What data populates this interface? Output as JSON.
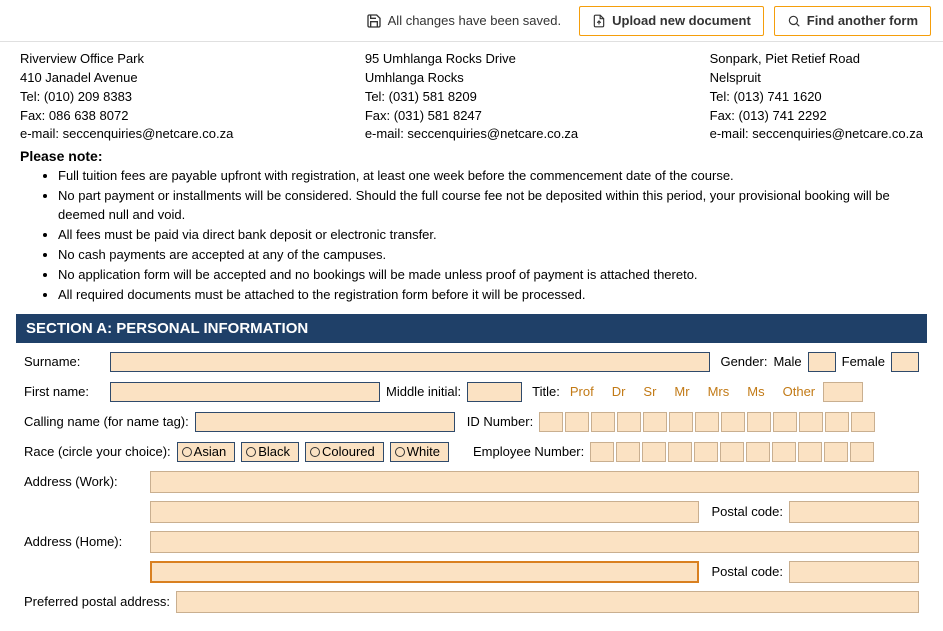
{
  "topbar": {
    "save_status": "All changes have been saved.",
    "upload_label": "Upload new document",
    "find_label": "Find another form"
  },
  "addresses": {
    "col0": [
      "Riverview Office Park",
      "410 Janadel Avenue",
      "Tel: (010) 209 8383",
      "Fax: 086 638 8072",
      "e-mail: seccenquiries@netcare.co.za"
    ],
    "col1": [
      "95 Umhlanga Rocks Drive",
      "Umhlanga Rocks",
      "Tel: (031) 581 8209",
      "Fax: (031) 581 8247",
      "e-mail: seccenquiries@netcare.co.za"
    ],
    "col2": [
      "Sonpark, Piet Retief Road",
      "Nelspruit",
      "Tel: (013) 741 1620",
      "Fax: (013) 741 2292",
      "e-mail: seccenquiries@netcare.co.za"
    ]
  },
  "please_note_heading": "Please note:",
  "notes": [
    "Full tuition fees are payable upfront with registration, at least one week before the commencement date of the course.",
    "No part payment or installments will be considered. Should the full course fee not be deposited within this period, your provisional booking will be deemed null and void.",
    "All fees must be paid via direct bank deposit or electronic transfer.",
    "No cash payments are accepted at any of the campuses.",
    "No application form will be accepted and no bookings will be made unless proof of payment is attached thereto.",
    "All required documents must be attached to the registration form before it will be processed."
  ],
  "section_a_title": "SECTION A: PERSONAL INFORMATION",
  "labels": {
    "surname": "Surname:",
    "gender": "Gender:",
    "male": "Male",
    "female": "Female",
    "first_name": "First name:",
    "middle_initial": "Middle initial:",
    "title": "Title:",
    "calling_name": "Calling name (for name tag):",
    "id_number": "ID Number:",
    "race": "Race (circle your choice):",
    "employee_number": "Employee Number:",
    "address_work": "Address (Work):",
    "address_home": "Address (Home):",
    "postal_code": "Postal code:",
    "preferred_postal": "Preferred postal address:"
  },
  "titles": [
    "Prof",
    "Dr",
    "Sr",
    "Mr",
    "Mrs",
    "Ms",
    "Other"
  ],
  "races": [
    "Asian",
    "Black",
    "Coloured",
    "White"
  ],
  "colors": {
    "section_header_bg": "#1f4068",
    "field_bg": "#fbe2c3",
    "field_border": "#c9af90",
    "boxed_border": "#2f4a6b",
    "focus_border": "#d98020",
    "title_text": "#c27a16",
    "button_border": "#f59e0b"
  },
  "id_cells": 13,
  "emp_cells": 11
}
